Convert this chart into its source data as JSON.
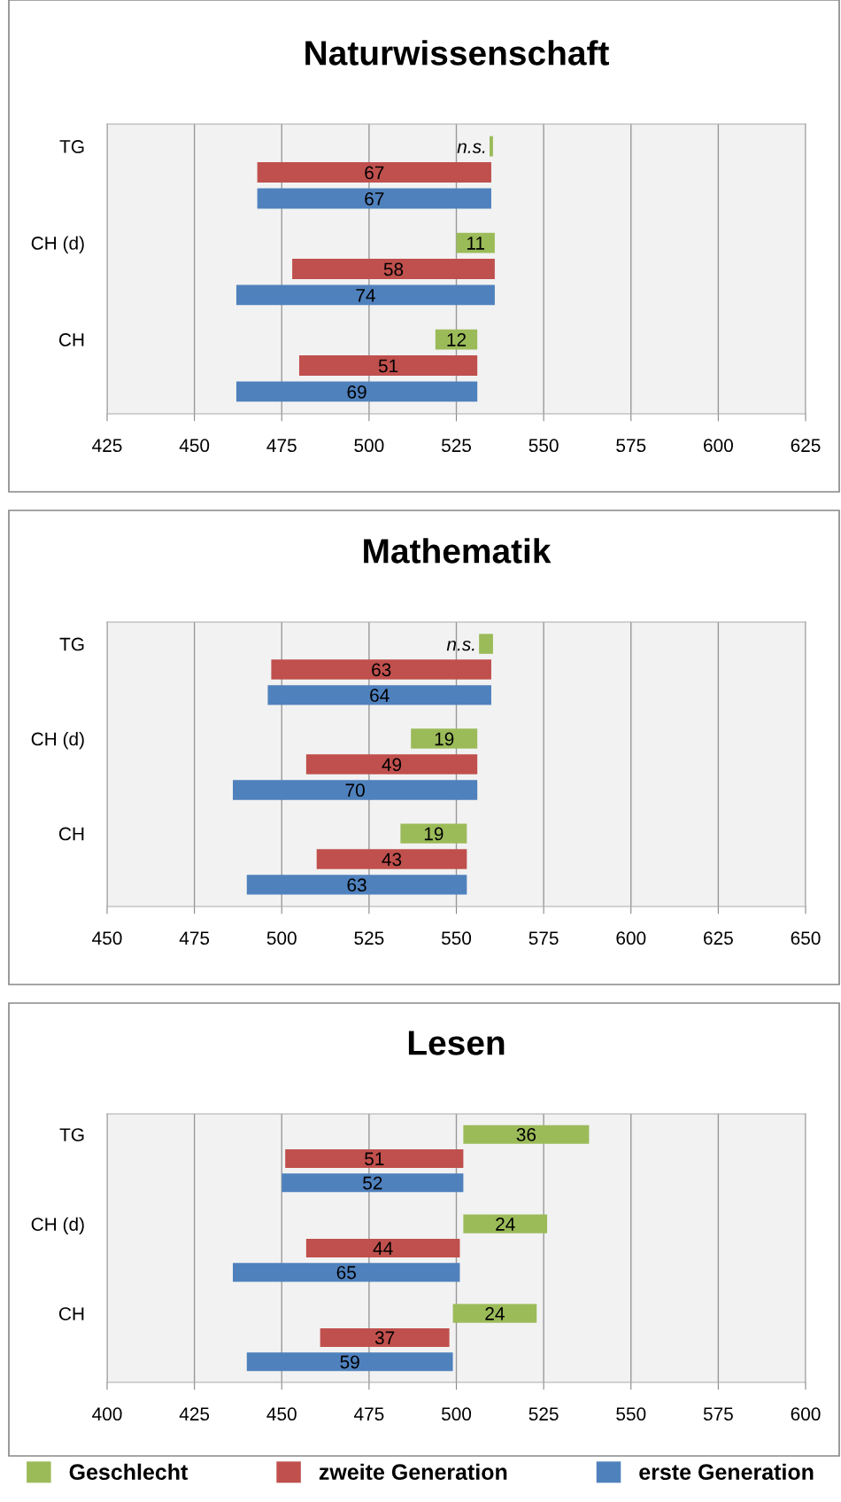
{
  "chart_data": [
    {
      "type": "bar",
      "orientation": "horizontal",
      "title": "Naturwissenschaft",
      "categories": [
        "TG",
        "CH (d)",
        "CH"
      ],
      "xlim": [
        425,
        625
      ],
      "xticks": [
        425,
        450,
        475,
        500,
        525,
        550,
        575,
        600,
        625
      ],
      "grid": "x",
      "series": [
        {
          "color": "#9bbb59",
          "base": [
            534.5,
            525,
            519
          ],
          "values": [
            1,
            11,
            12
          ],
          "value_labels": [
            "n.s.",
            "11",
            "12"
          ]
        },
        {
          "color": "#c0504d",
          "base": [
            468,
            478,
            480
          ],
          "values": [
            67,
            58,
            51
          ],
          "value_labels": [
            "67",
            "58",
            "51"
          ]
        },
        {
          "color": "#4f81bd",
          "base": [
            468,
            462,
            462
          ],
          "values": [
            67,
            74,
            69
          ],
          "value_labels": [
            "67",
            "74",
            "69"
          ]
        }
      ]
    },
    {
      "type": "bar",
      "orientation": "horizontal",
      "title": "Mathematik",
      "categories": [
        "TG",
        "CH (d)",
        "CH"
      ],
      "xlim": [
        450,
        650
      ],
      "xticks": [
        450,
        475,
        500,
        525,
        550,
        575,
        600,
        625,
        650
      ],
      "grid": "x",
      "series": [
        {
          "color": "#9bbb59",
          "base": [
            556.5,
            537,
            534
          ],
          "values": [
            4,
            19,
            19
          ],
          "value_labels": [
            "n.s.",
            "19",
            "19"
          ]
        },
        {
          "color": "#c0504d",
          "base": [
            497,
            507,
            510
          ],
          "values": [
            63,
            49,
            43
          ],
          "value_labels": [
            "63",
            "49",
            "43"
          ]
        },
        {
          "color": "#4f81bd",
          "base": [
            496,
            486,
            490
          ],
          "values": [
            64,
            70,
            63
          ],
          "value_labels": [
            "64",
            "70",
            "63"
          ]
        }
      ]
    },
    {
      "type": "bar",
      "orientation": "horizontal",
      "title": "Lesen",
      "categories": [
        "TG",
        "CH (d)",
        "CH"
      ],
      "xlim": [
        400,
        600
      ],
      "xticks": [
        400,
        425,
        450,
        475,
        500,
        525,
        550,
        575,
        600
      ],
      "grid": "x",
      "legend": "bottom",
      "series": [
        {
          "name": "Geschlecht",
          "color": "#9bbb59",
          "base": [
            502,
            502,
            499
          ],
          "values": [
            36,
            24,
            24
          ],
          "value_labels": [
            "36",
            "24",
            "24"
          ]
        },
        {
          "name": "zweite Generation",
          "color": "#c0504d",
          "base": [
            451,
            457,
            461
          ],
          "values": [
            51,
            44,
            37
          ],
          "value_labels": [
            "51",
            "44",
            "37"
          ]
        },
        {
          "name": "erste Generation",
          "color": "#4f81bd",
          "base": [
            450,
            436,
            440
          ],
          "values": [
            52,
            65,
            59
          ],
          "value_labels": [
            "52",
            "65",
            "59"
          ]
        }
      ]
    }
  ]
}
